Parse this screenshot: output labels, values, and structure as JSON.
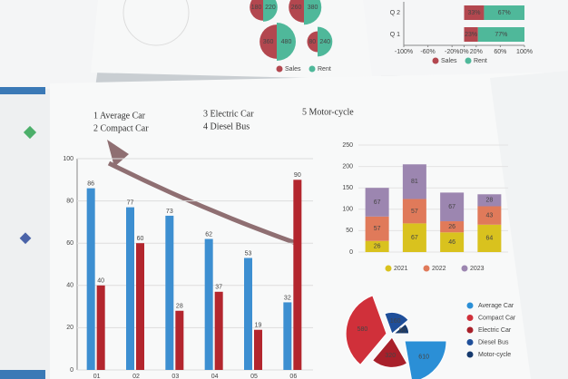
{
  "chart_data": [
    {
      "type": "bar",
      "annotations": [
        "1 Average Car",
        "2 Compact Car",
        "3 Electric Car",
        "4 Diesel Bus",
        "5 Motor-cycle"
      ],
      "categories": [
        "01",
        "02",
        "03",
        "04",
        "05",
        "06"
      ],
      "series": [
        {
          "name": "Average Car",
          "color": "#3d8fd1",
          "values": [
            86,
            77,
            73,
            62,
            53,
            32
          ]
        },
        {
          "name": "Compact Car",
          "color": "#b3262e",
          "values": [
            40,
            60,
            28,
            37,
            19,
            90
          ]
        }
      ],
      "ylim": [
        0,
        100
      ],
      "yticks": [
        0,
        20,
        40,
        60,
        80,
        100
      ],
      "grid": true
    },
    {
      "type": "stacked_bar",
      "categories": [
        null,
        null,
        null,
        null
      ],
      "series": [
        {
          "name": "2021",
          "color": "#d9c21e",
          "values": [
            26,
            67,
            46,
            64
          ]
        },
        {
          "name": "2022",
          "color": "#e07a5a",
          "values": [
            57,
            57,
            26,
            43
          ]
        },
        {
          "name": "2023",
          "color": "#9c86b0",
          "values": [
            67,
            81,
            67,
            28
          ]
        }
      ],
      "ylim": [
        0,
        250
      ],
      "yticks": [
        0,
        50,
        100,
        150,
        200,
        250
      ],
      "grid": true
    },
    {
      "type": "pie",
      "labels": [
        "Average Car",
        "Compact Car",
        "Electric Car",
        "Diesel Bus",
        "Motor-cycle"
      ],
      "values": [
        610,
        580,
        320,
        160,
        80
      ],
      "colors": [
        "#2b8fd6",
        "#d0303a",
        "#a8202a",
        "#1f4f9a",
        "#163a6e"
      ]
    },
    {
      "type": "hbar",
      "categories": [
        "Q 2",
        "Q 1"
      ],
      "series": [
        {
          "name": "Sales",
          "color": "#b3474f",
          "values": [
            33,
            23
          ],
          "value_labels": [
            "33%",
            "23%"
          ]
        },
        {
          "name": "Rent",
          "color": "#4fb89a",
          "values": [
            67,
            77
          ],
          "value_labels": [
            "67%",
            "77%"
          ]
        }
      ],
      "xlim": [
        -100,
        100
      ],
      "xticks": [
        {
          "value": -100,
          "label": "-100%"
        },
        {
          "value": -60,
          "label": "-60%"
        },
        {
          "value": -20,
          "label": "-20%"
        },
        {
          "value": 0,
          "label": "0%"
        },
        {
          "value": 20,
          "label": "20%"
        },
        {
          "value": 60,
          "label": "60%"
        },
        {
          "value": 100,
          "label": "100%"
        }
      ]
    },
    {
      "type": "bubble",
      "series": [
        {
          "name": "Sales",
          "color": "#b3474f",
          "values": [
            180,
            260,
            360,
            80
          ]
        },
        {
          "name": "Rent",
          "color": "#4fb89a",
          "values": [
            220,
            380,
            480,
            240
          ]
        }
      ]
    }
  ]
}
